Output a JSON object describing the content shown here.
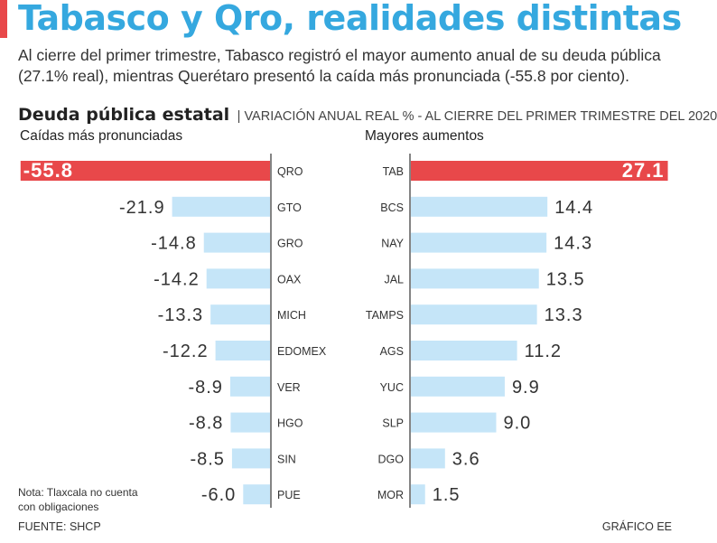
{
  "header": {
    "title": "Tabasco y Qro, realidades distintas",
    "subtitle": "Al cierre del primer trimestre, Tabasco registró el mayor aumento anual de su deuda pública (27.1% real), mientras Querétaro presentó la caída más pronunciada (-55.8 por ciento)."
  },
  "chart_data": {
    "type": "bar",
    "title": "Deuda pública estatal",
    "subtitle": "| VARIACIÓN ANUAL REAL % - AL CIERRE DEL PRIMER TRIMESTRE DEL 2020",
    "left_panel": {
      "label": "Caídas más pronunciadas",
      "categories": [
        "QRO",
        "GTO",
        "GRO",
        "OAX",
        "MICH",
        "EDOMEX",
        "VER",
        "HGO",
        "SIN",
        "PUE"
      ],
      "values": [
        -55.8,
        -21.9,
        -14.8,
        -14.2,
        -13.3,
        -12.2,
        -8.9,
        -8.8,
        -8.5,
        -6.0
      ],
      "value_labels": [
        "-55.8",
        "-21.9",
        "-14.8",
        "-14.2",
        "-13.3",
        "-12.2",
        "-8.9",
        "-8.8",
        "-8.5",
        "-6.0"
      ]
    },
    "right_panel": {
      "label": "Mayores aumentos",
      "categories": [
        "TAB",
        "BCS",
        "NAY",
        "JAL",
        "TAMPS",
        "AGS",
        "YUC",
        "SLP",
        "DGO",
        "MOR"
      ],
      "values": [
        27.1,
        14.4,
        14.3,
        13.5,
        13.3,
        11.2,
        9.9,
        9.0,
        3.6,
        1.5
      ],
      "value_labels": [
        "27.1",
        "14.4",
        "14.3",
        "13.5",
        "13.3",
        "11.2",
        "9.9",
        "9.0",
        "3.6",
        "1.5"
      ]
    },
    "highlight_color": "#e8484a",
    "bar_color": "#c5e5f8"
  },
  "footer": {
    "note": "Nota: Tlaxcala no cuenta con obligaciones",
    "source": "FUENTE: SHCP",
    "credit": "GRÁFICO EE"
  }
}
